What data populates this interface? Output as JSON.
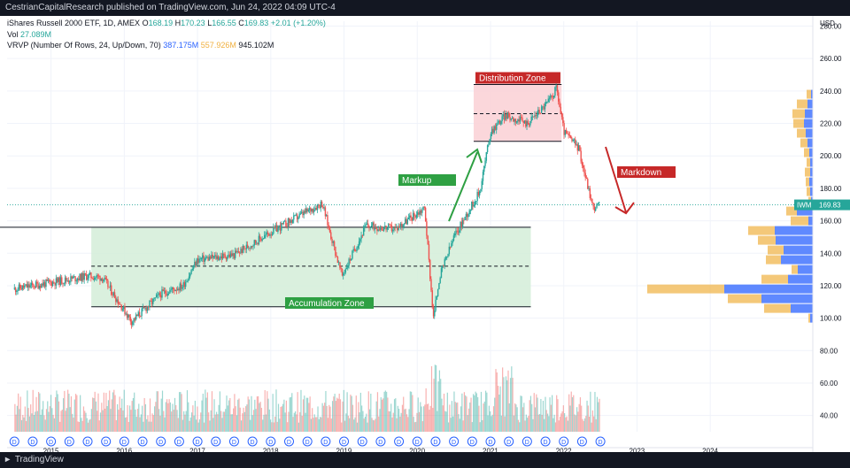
{
  "header": {
    "published_text": "CestrianCapitalResearch published on TradingView.com, Jun 24, 2022 04:09 UTC-4"
  },
  "legend": {
    "symbol_line": {
      "name": "iShares Russell 2000 ETF, 1D, AMEX",
      "o_label": "O",
      "o": "168.19",
      "h_label": "H",
      "h": "170.23",
      "l_label": "L",
      "l": "166.55",
      "c_label": "C",
      "c": "169.83",
      "change": "+2.01 (+1.20%)"
    },
    "vol_line": {
      "label": "Vol",
      "value": "27.089M"
    },
    "vrvp_line": {
      "label": "VRVP (Number Of Rows, 24, Up/Down, 70)",
      "up": "387.175M",
      "down": "557.926M",
      "total": "945.102M"
    }
  },
  "currency": "USD",
  "price_badge": {
    "ticker": "IWM",
    "price": "169.83"
  },
  "annotations": {
    "distribution": "Distribution Zone",
    "markup": "Markup",
    "markdown": "Markdown",
    "accumulation": "Accumulation Zone"
  },
  "footer": {
    "brand": "TradingView"
  },
  "colors": {
    "up": "#26a69a",
    "down": "#ef5350",
    "accumulation_fill": "#d4edd8",
    "distribution_fill": "#fbd3d7",
    "label_green": "#2ea043",
    "label_red": "#c62828",
    "vrvp_up": "#2962ff",
    "vrvp_down": "#f0b040"
  },
  "chart_data": {
    "type": "candlestick",
    "y_ticks": [
      40,
      60,
      80,
      100,
      120,
      140,
      160,
      180,
      200,
      220,
      240,
      260,
      280
    ],
    "ylim": [
      30,
      283
    ],
    "x_ticks": [
      "2015",
      "2016",
      "2017",
      "2018",
      "2019",
      "2020",
      "2021",
      "2022",
      "2023",
      "2024"
    ],
    "x": [
      2014.5,
      2015.0,
      2015.5,
      2015.7,
      2016.1,
      2016.5,
      2016.8,
      2017.0,
      2017.5,
      2018.0,
      2018.7,
      2018.97,
      2019.3,
      2019.7,
      2020.1,
      2020.22,
      2020.3,
      2020.5,
      2020.85,
      2021.0,
      2021.2,
      2021.5,
      2021.8,
      2021.9,
      2022.0,
      2022.2,
      2022.4,
      2022.48
    ],
    "close": [
      118,
      122,
      126,
      125,
      98,
      115,
      120,
      136,
      139,
      153,
      171,
      126,
      157,
      155,
      168,
      100,
      125,
      150,
      178,
      215,
      225,
      220,
      234,
      242,
      215,
      205,
      168,
      169.83
    ],
    "zones": {
      "accumulation": {
        "x": [
          2015.55,
          2021.55
        ],
        "y_top": 156,
        "y_mid": 132,
        "y_bottom": 107
      },
      "distribution": {
        "x": [
          2020.77,
          2021.97
        ],
        "y_top": 244,
        "y_mid": 226,
        "y_bottom": 209
      }
    },
    "volume_profile": [
      {
        "price": 100,
        "up": 3,
        "down": 2
      },
      {
        "price": 106,
        "up": 25,
        "down": 30
      },
      {
        "price": 112,
        "up": 58,
        "down": 38
      },
      {
        "price": 118,
        "up": 100,
        "down": 87
      },
      {
        "price": 124,
        "up": 28,
        "down": 30
      },
      {
        "price": 130,
        "up": 17,
        "down": 7
      },
      {
        "price": 136,
        "up": 36,
        "down": 17
      },
      {
        "price": 142,
        "up": 33,
        "down": 18
      },
      {
        "price": 148,
        "up": 42,
        "down": 20
      },
      {
        "price": 154,
        "up": 43,
        "down": 30
      },
      {
        "price": 160,
        "up": 5,
        "down": 20
      },
      {
        "price": 166,
        "up": 18,
        "down": 12
      },
      {
        "price": 172,
        "up": 2,
        "down": 3
      },
      {
        "price": 178,
        "up": 3,
        "down": 4
      },
      {
        "price": 184,
        "up": 4,
        "down": 4
      },
      {
        "price": 190,
        "up": 3,
        "down": 6
      },
      {
        "price": 196,
        "up": 3,
        "down": 4
      },
      {
        "price": 202,
        "up": 4,
        "down": 6
      },
      {
        "price": 208,
        "up": 6,
        "down": 8
      },
      {
        "price": 214,
        "up": 8,
        "down": 10
      },
      {
        "price": 220,
        "up": 10,
        "down": 12
      },
      {
        "price": 226,
        "up": 9,
        "down": 14
      },
      {
        "price": 232,
        "up": 6,
        "down": 12
      },
      {
        "price": 238,
        "up": 2,
        "down": 5
      }
    ]
  }
}
